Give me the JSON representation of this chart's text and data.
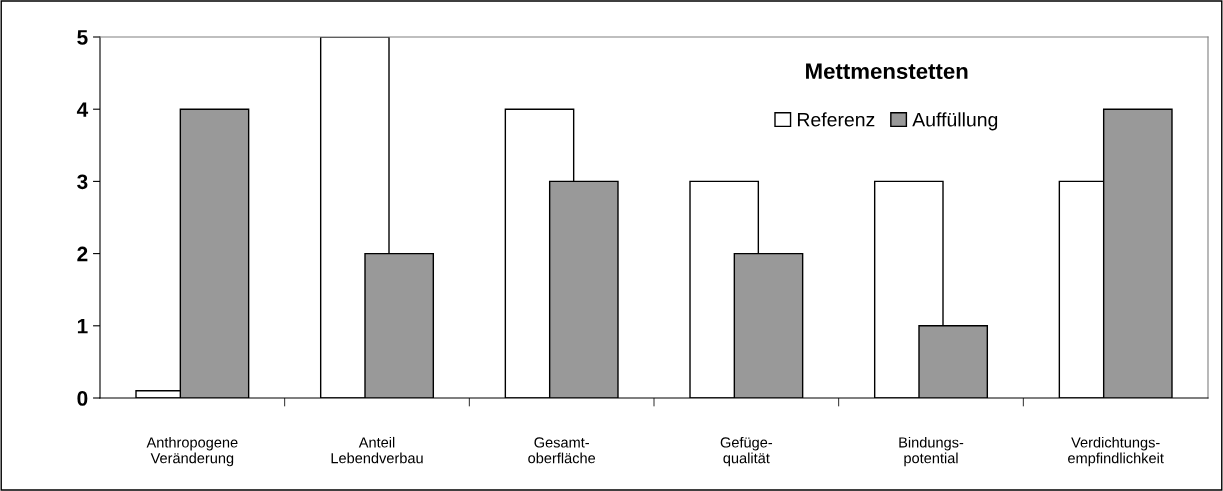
{
  "chart_data": {
    "type": "bar",
    "title": "Mettmenstetten",
    "categories": [
      "Anthropogene\nVeränderung",
      "Anteil\nLebendverbau",
      "Gesamt-\noberfläche",
      "Gefüge-\nqualität",
      "Bindungs-\npotential",
      "Verdichtungs-\nempfindlichkeit"
    ],
    "series": [
      {
        "name": "Referenz",
        "color": "#ffffff",
        "values": [
          0.1,
          5,
          4,
          3,
          3,
          3
        ]
      },
      {
        "name": "Auffüllung",
        "color": "#999999",
        "values": [
          4,
          2,
          3,
          2,
          1,
          4
        ]
      }
    ],
    "ylim": [
      0,
      5
    ],
    "yticks": [
      0,
      1,
      2,
      3,
      4,
      5
    ],
    "grid": false,
    "legend": "top right"
  }
}
